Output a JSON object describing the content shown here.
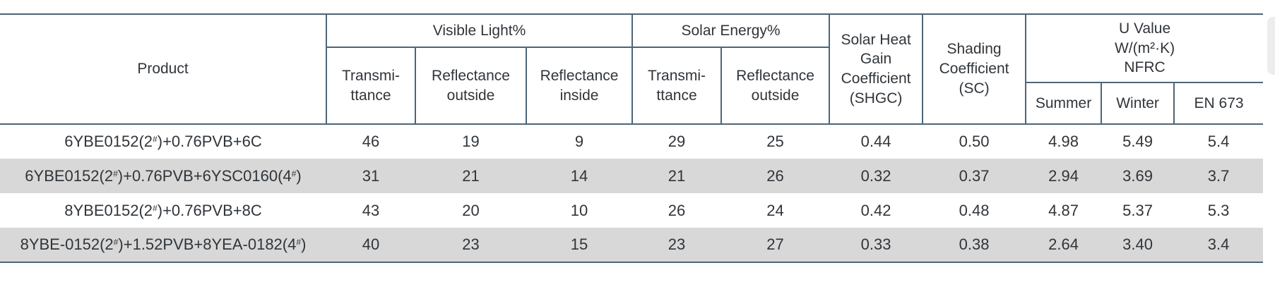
{
  "header": {
    "product": "Product",
    "groups": {
      "visible_light": "Visible Light%",
      "solar_energy": "Solar Energy%",
      "shgc": "Solar Heat\nGain\nCoefficient\n(SHGC)",
      "shading": "Shading\nCoefficient\n(SC)",
      "u_value": "U Value\nW/(m²·K)\nNFRC"
    },
    "sub": {
      "vl_transmittance": "Transmi-\nttance",
      "vl_reflectance_outside": "Reflectance\noutside",
      "vl_reflectance_inside": "Reflectance\ninside",
      "se_transmittance": "Transmi-\nttance",
      "se_reflectance_outside": "Reflectance\noutside",
      "u_summer": "Summer",
      "u_winter": "Winter",
      "u_en673": "EN 673"
    }
  },
  "rows": [
    {
      "product": "6YBE0152(2#)+0.76PVB+6C",
      "values": [
        "46",
        "19",
        "9",
        "29",
        "25",
        "0.44",
        "0.50",
        "4.98",
        "5.49",
        "5.4"
      ]
    },
    {
      "product": "6YBE0152(2#)+0.76PVB+6YSC0160(4#)",
      "values": [
        "31",
        "21",
        "14",
        "21",
        "26",
        "0.32",
        "0.37",
        "2.94",
        "3.69",
        "3.7"
      ]
    },
    {
      "product": "8YBE0152(2#)+0.76PVB+8C",
      "values": [
        "43",
        "20",
        "10",
        "26",
        "24",
        "0.42",
        "0.48",
        "4.87",
        "5.37",
        "5.3"
      ]
    },
    {
      "product": "8YBE-0152(2#)+1.52PVB+8YEA-0182(4#)",
      "values": [
        "40",
        "23",
        "15",
        "23",
        "27",
        "0.33",
        "0.38",
        "2.64",
        "3.40",
        "3.4"
      ]
    }
  ],
  "colors": {
    "line": "#4d6578",
    "row_alt": "#d8d8d8",
    "text": "#30353a"
  }
}
